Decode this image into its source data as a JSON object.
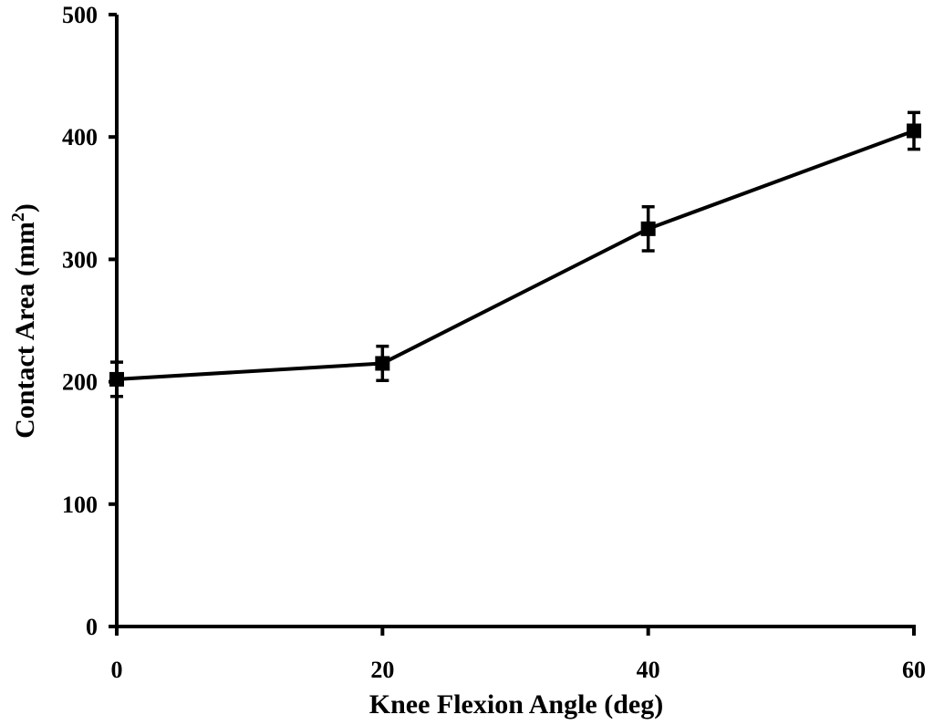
{
  "chart_data": {
    "type": "line",
    "title": "",
    "xlabel": "Knee Flexion Angle (deg)",
    "ylabel": "Contact Area (mm",
    "ylabel_superscript": "2",
    "ylabel_suffix": ")",
    "x": [
      0,
      20,
      40,
      60
    ],
    "xlim": [
      0,
      60
    ],
    "ylim": [
      0,
      500
    ],
    "x_ticks": [
      0,
      20,
      40,
      60
    ],
    "y_ticks": [
      0,
      100,
      200,
      300,
      400,
      500
    ],
    "x_tick_labels": [
      "0",
      "20",
      "40",
      "60"
    ],
    "y_tick_labels": [
      "0",
      "100",
      "200",
      "300",
      "400",
      "500"
    ],
    "grid": false,
    "legend": "none",
    "series": [
      {
        "values": [
          202,
          215,
          325,
          405
        ],
        "error": [
          14,
          14,
          18,
          15
        ],
        "marker": "square",
        "color": "#000000"
      }
    ]
  }
}
